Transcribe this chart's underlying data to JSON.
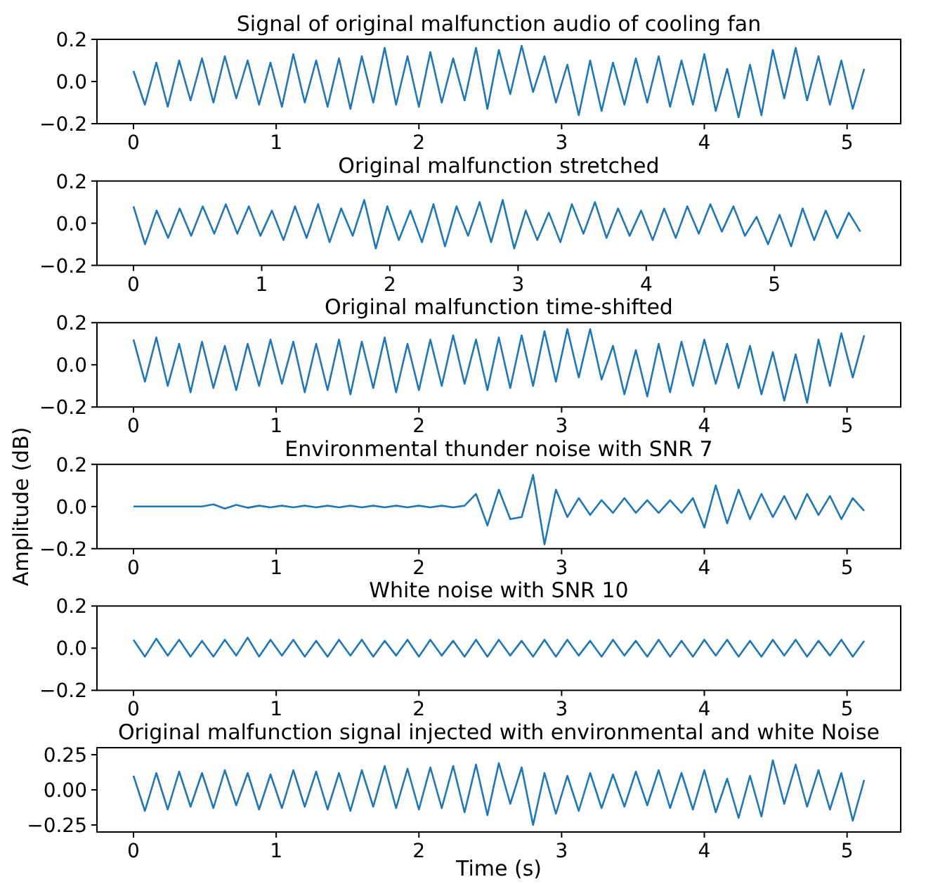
{
  "chart_data": [
    {
      "type": "line",
      "title": "Signal of original malfunction audio of cooling fan",
      "xlim": [
        -0.256,
        5.376
      ],
      "xticks": [
        0,
        1,
        2,
        3,
        4,
        5
      ],
      "ylim": [
        -0.2,
        0.2
      ],
      "yticks": [
        {
          "value": -0.2,
          "label": "−0.2"
        },
        {
          "value": 0,
          "label": "0.0"
        },
        {
          "value": 0.2,
          "label": "0.2"
        }
      ],
      "x": [
        0,
        0.08,
        0.16,
        0.24,
        0.32,
        0.4,
        0.48,
        0.56,
        0.64,
        0.72,
        0.8,
        0.88,
        0.96,
        1.04,
        1.12,
        1.2,
        1.28,
        1.36,
        1.44,
        1.52,
        1.6,
        1.68,
        1.76,
        1.84,
        1.92,
        2,
        2.08,
        2.16,
        2.24,
        2.32,
        2.4,
        2.48,
        2.56,
        2.64,
        2.72,
        2.8,
        2.88,
        2.96,
        3.04,
        3.12,
        3.2,
        3.28,
        3.36,
        3.44,
        3.52,
        3.6,
        3.68,
        3.76,
        3.84,
        3.92,
        4,
        4.08,
        4.16,
        4.24,
        4.32,
        4.4,
        4.48,
        4.56,
        4.64,
        4.72,
        4.8,
        4.88,
        4.96,
        5.04,
        5.12
      ],
      "series": [
        {
          "color": "#1f77b4",
          "values": [
            0.05,
            -0.11,
            0.09,
            -0.12,
            0.1,
            -0.09,
            0.11,
            -0.1,
            0.12,
            -0.08,
            0.1,
            -0.11,
            0.09,
            -0.12,
            0.13,
            -0.1,
            0.1,
            -0.12,
            0.11,
            -0.13,
            0.12,
            -0.1,
            0.16,
            -0.11,
            0.12,
            -0.12,
            0.14,
            -0.1,
            0.11,
            -0.09,
            0.16,
            -0.13,
            0.15,
            -0.06,
            0.17,
            -0.05,
            0.12,
            -0.1,
            0.08,
            -0.16,
            0.1,
            -0.14,
            0.09,
            -0.11,
            0.11,
            -0.1,
            0.12,
            -0.12,
            0.1,
            -0.11,
            0.13,
            -0.14,
            0.06,
            -0.17,
            0.08,
            -0.16,
            0.15,
            -0.08,
            0.16,
            -0.09,
            0.12,
            -0.11,
            0.1,
            -0.13,
            0.06
          ]
        }
      ]
    },
    {
      "type": "line",
      "title": "Original  malfunction stretched",
      "xlim": [
        -0.285,
        5.985
      ],
      "xticks": [
        0,
        1,
        2,
        3,
        4,
        5
      ],
      "ylim": [
        -0.2,
        0.2
      ],
      "yticks": [
        {
          "value": -0.2,
          "label": "−0.2"
        },
        {
          "value": 0,
          "label": "0.0"
        },
        {
          "value": 0.2,
          "label": "0.2"
        }
      ],
      "x": [
        0,
        0.09,
        0.18,
        0.27,
        0.36,
        0.45,
        0.54,
        0.63,
        0.72,
        0.81,
        0.9,
        0.99,
        1.08,
        1.17,
        1.26,
        1.35,
        1.44,
        1.53,
        1.62,
        1.71,
        1.8,
        1.89,
        1.98,
        2.07,
        2.16,
        2.25,
        2.34,
        2.43,
        2.52,
        2.61,
        2.7,
        2.79,
        2.88,
        2.97,
        3.06,
        3.15,
        3.24,
        3.33,
        3.42,
        3.51,
        3.6,
        3.69,
        3.78,
        3.87,
        3.96,
        4.05,
        4.14,
        4.23,
        4.32,
        4.41,
        4.5,
        4.59,
        4.68,
        4.77,
        4.86,
        4.95,
        5.04,
        5.13,
        5.22,
        5.31,
        5.4,
        5.49,
        5.58,
        5.67
      ],
      "series": [
        {
          "color": "#1f77b4",
          "values": [
            0.08,
            -0.1,
            0.06,
            -0.07,
            0.07,
            -0.06,
            0.08,
            -0.05,
            0.09,
            -0.05,
            0.08,
            -0.06,
            0.06,
            -0.08,
            0.08,
            -0.07,
            0.09,
            -0.09,
            0.07,
            -0.06,
            0.11,
            -0.12,
            0.08,
            -0.08,
            0.06,
            -0.09,
            0.09,
            -0.11,
            0.08,
            -0.06,
            0.1,
            -0.09,
            0.11,
            -0.12,
            0.06,
            -0.08,
            0.05,
            -0.09,
            0.09,
            -0.05,
            0.1,
            -0.07,
            0.07,
            -0.06,
            0.06,
            -0.08,
            0.07,
            -0.07,
            0.08,
            -0.05,
            0.09,
            -0.04,
            0.08,
            -0.06,
            0.03,
            -0.1,
            0.04,
            -0.11,
            0.07,
            -0.08,
            0.06,
            -0.07,
            0.05,
            -0.04
          ]
        }
      ]
    },
    {
      "type": "line",
      "title": "Original malfunction time-shifted",
      "xlim": [
        -0.256,
        5.376
      ],
      "xticks": [
        0,
        1,
        2,
        3,
        4,
        5
      ],
      "ylim": [
        -0.2,
        0.2
      ],
      "yticks": [
        {
          "value": -0.2,
          "label": "−0.2"
        },
        {
          "value": 0,
          "label": "0.0"
        },
        {
          "value": 0.2,
          "label": "0.2"
        }
      ],
      "x": [
        0,
        0.08,
        0.16,
        0.24,
        0.32,
        0.4,
        0.48,
        0.56,
        0.64,
        0.72,
        0.8,
        0.88,
        0.96,
        1.04,
        1.12,
        1.2,
        1.28,
        1.36,
        1.44,
        1.52,
        1.6,
        1.68,
        1.76,
        1.84,
        1.92,
        2,
        2.08,
        2.16,
        2.24,
        2.32,
        2.4,
        2.48,
        2.56,
        2.64,
        2.72,
        2.8,
        2.88,
        2.96,
        3.04,
        3.12,
        3.2,
        3.28,
        3.36,
        3.44,
        3.52,
        3.6,
        3.68,
        3.76,
        3.84,
        3.92,
        4,
        4.08,
        4.16,
        4.24,
        4.32,
        4.4,
        4.48,
        4.56,
        4.64,
        4.72,
        4.8,
        4.88,
        4.96,
        5.04,
        5.12
      ],
      "series": [
        {
          "color": "#1f77b4",
          "values": [
            0.12,
            -0.08,
            0.13,
            -0.1,
            0.1,
            -0.13,
            0.11,
            -0.11,
            0.09,
            -0.12,
            0.1,
            -0.1,
            0.12,
            -0.09,
            0.11,
            -0.13,
            0.1,
            -0.12,
            0.12,
            -0.14,
            0.11,
            -0.11,
            0.13,
            -0.13,
            0.1,
            -0.12,
            0.12,
            -0.1,
            0.14,
            -0.09,
            0.12,
            -0.12,
            0.13,
            -0.11,
            0.14,
            -0.1,
            0.16,
            -0.08,
            0.17,
            -0.06,
            0.17,
            -0.07,
            0.09,
            -0.14,
            0.07,
            -0.15,
            0.1,
            -0.13,
            0.11,
            -0.1,
            0.12,
            -0.09,
            0.1,
            -0.11,
            0.09,
            -0.14,
            0.06,
            -0.17,
            0.05,
            -0.18,
            0.12,
            -0.1,
            0.15,
            -0.06,
            0.14
          ]
        }
      ]
    },
    {
      "type": "line",
      "title": "Environmental thunder noise with SNR 7",
      "ylabel": "Amplitude (dB)",
      "xlim": [
        -0.256,
        5.376
      ],
      "xticks": [
        0,
        1,
        2,
        3,
        4,
        5
      ],
      "ylim": [
        -0.2,
        0.2
      ],
      "yticks": [
        {
          "value": -0.2,
          "label": "−0.2"
        },
        {
          "value": 0,
          "label": "0.0"
        },
        {
          "value": 0.2,
          "label": "0.2"
        }
      ],
      "x": [
        0,
        0.08,
        0.16,
        0.24,
        0.32,
        0.4,
        0.48,
        0.56,
        0.64,
        0.72,
        0.8,
        0.88,
        0.96,
        1.04,
        1.12,
        1.2,
        1.28,
        1.36,
        1.44,
        1.52,
        1.6,
        1.68,
        1.76,
        1.84,
        1.92,
        2,
        2.08,
        2.16,
        2.24,
        2.32,
        2.4,
        2.48,
        2.56,
        2.64,
        2.72,
        2.8,
        2.88,
        2.96,
        3.04,
        3.12,
        3.2,
        3.28,
        3.36,
        3.44,
        3.52,
        3.6,
        3.68,
        3.76,
        3.84,
        3.92,
        4,
        4.08,
        4.16,
        4.24,
        4.32,
        4.4,
        4.48,
        4.56,
        4.64,
        4.72,
        4.8,
        4.88,
        4.96,
        5.04,
        5.12
      ],
      "series": [
        {
          "color": "#1f77b4",
          "values": [
            0,
            0,
            0,
            0,
            0,
            0,
            0,
            0.01,
            -0.01,
            0.008,
            -0.006,
            0.004,
            -0.004,
            0.004,
            -0.004,
            0.004,
            -0.004,
            0.004,
            -0.004,
            0.004,
            -0.004,
            0.004,
            -0.004,
            0.004,
            -0.004,
            0.004,
            -0.004,
            0.004,
            -0.004,
            0.004,
            0.06,
            -0.09,
            0.08,
            -0.06,
            -0.05,
            0.15,
            -0.18,
            0.08,
            -0.05,
            0.04,
            -0.04,
            0.03,
            -0.03,
            0.04,
            -0.03,
            0.03,
            -0.03,
            0.03,
            -0.03,
            0.04,
            -0.1,
            0.1,
            -0.08,
            0.08,
            -0.06,
            0.06,
            -0.05,
            0.05,
            -0.06,
            0.06,
            -0.04,
            0.05,
            -0.06,
            0.04,
            -0.02
          ]
        }
      ]
    },
    {
      "type": "line",
      "title": "White noise with SNR 10",
      "xlim": [
        -0.256,
        5.376
      ],
      "xticks": [
        0,
        1,
        2,
        3,
        4,
        5
      ],
      "ylim": [
        -0.2,
        0.2
      ],
      "yticks": [
        {
          "value": -0.2,
          "label": "−0.2"
        },
        {
          "value": 0,
          "label": "0.0"
        },
        {
          "value": 0.2,
          "label": "0.2"
        }
      ],
      "x": [
        0,
        0.08,
        0.16,
        0.24,
        0.32,
        0.4,
        0.48,
        0.56,
        0.64,
        0.72,
        0.8,
        0.88,
        0.96,
        1.04,
        1.12,
        1.2,
        1.28,
        1.36,
        1.44,
        1.52,
        1.6,
        1.68,
        1.76,
        1.84,
        1.92,
        2,
        2.08,
        2.16,
        2.24,
        2.32,
        2.4,
        2.48,
        2.56,
        2.64,
        2.72,
        2.8,
        2.88,
        2.96,
        3.04,
        3.12,
        3.2,
        3.28,
        3.36,
        3.44,
        3.52,
        3.6,
        3.68,
        3.76,
        3.84,
        3.92,
        4,
        4.08,
        4.16,
        4.24,
        4.32,
        4.4,
        4.48,
        4.56,
        4.64,
        4.72,
        4.8,
        4.88,
        4.96,
        5.04,
        5.12
      ],
      "series": [
        {
          "color": "#1f77b4",
          "values": [
            0.04,
            -0.04,
            0.045,
            -0.035,
            0.04,
            -0.04,
            0.035,
            -0.04,
            0.04,
            -0.035,
            0.05,
            -0.04,
            0.04,
            -0.035,
            0.04,
            -0.04,
            0.035,
            -0.04,
            0.04,
            -0.035,
            0.04,
            -0.04,
            0.035,
            -0.035,
            0.04,
            -0.04,
            0.04,
            -0.035,
            0.035,
            -0.04,
            0.04,
            -0.04,
            0.04,
            -0.035,
            0.035,
            -0.04,
            0.04,
            -0.04,
            0.04,
            -0.035,
            0.035,
            -0.04,
            0.04,
            -0.035,
            0.035,
            -0.04,
            0.04,
            -0.04,
            0.035,
            -0.04,
            0.04,
            -0.035,
            0.04,
            -0.04,
            0.035,
            -0.04,
            0.04,
            -0.035,
            0.04,
            -0.04,
            0.035,
            -0.035,
            0.04,
            -0.04,
            0.035
          ]
        }
      ]
    },
    {
      "type": "line",
      "title": "Original malfunction signal injected with environmental and white Noise",
      "xlabel": "Time (s)",
      "xlim": [
        -0.256,
        5.376
      ],
      "xticks": [
        0,
        1,
        2,
        3,
        4,
        5
      ],
      "ylim": [
        -0.3,
        0.3
      ],
      "yticks": [
        {
          "value": -0.25,
          "label": "−0.25"
        },
        {
          "value": 0,
          "label": "0.00"
        },
        {
          "value": 0.25,
          "label": "0.25"
        }
      ],
      "x": [
        0,
        0.08,
        0.16,
        0.24,
        0.32,
        0.4,
        0.48,
        0.56,
        0.64,
        0.72,
        0.8,
        0.88,
        0.96,
        1.04,
        1.12,
        1.2,
        1.28,
        1.36,
        1.44,
        1.52,
        1.6,
        1.68,
        1.76,
        1.84,
        1.92,
        2,
        2.08,
        2.16,
        2.24,
        2.32,
        2.4,
        2.48,
        2.56,
        2.64,
        2.72,
        2.8,
        2.88,
        2.96,
        3.04,
        3.12,
        3.2,
        3.28,
        3.36,
        3.44,
        3.52,
        3.6,
        3.68,
        3.76,
        3.84,
        3.92,
        4,
        4.08,
        4.16,
        4.24,
        4.32,
        4.4,
        4.48,
        4.56,
        4.64,
        4.72,
        4.8,
        4.88,
        4.96,
        5.04,
        5.12
      ],
      "series": [
        {
          "color": "#1f77b4",
          "values": [
            0.1,
            -0.15,
            0.12,
            -0.14,
            0.13,
            -0.12,
            0.12,
            -0.13,
            0.14,
            -0.11,
            0.12,
            -0.14,
            0.11,
            -0.13,
            0.14,
            -0.12,
            0.13,
            -0.14,
            0.12,
            -0.15,
            0.14,
            -0.12,
            0.17,
            -0.13,
            0.15,
            -0.14,
            0.16,
            -0.13,
            0.17,
            -0.16,
            0.18,
            -0.18,
            0.19,
            -0.1,
            0.16,
            -0.25,
            0.12,
            -0.17,
            0.1,
            -0.15,
            0.12,
            -0.13,
            0.11,
            -0.12,
            0.13,
            -0.11,
            0.14,
            -0.13,
            0.12,
            -0.14,
            0.14,
            -0.16,
            0.08,
            -0.2,
            0.1,
            -0.19,
            0.21,
            -0.1,
            0.18,
            -0.12,
            0.14,
            -0.14,
            0.12,
            -0.22,
            0.07
          ]
        }
      ]
    }
  ]
}
